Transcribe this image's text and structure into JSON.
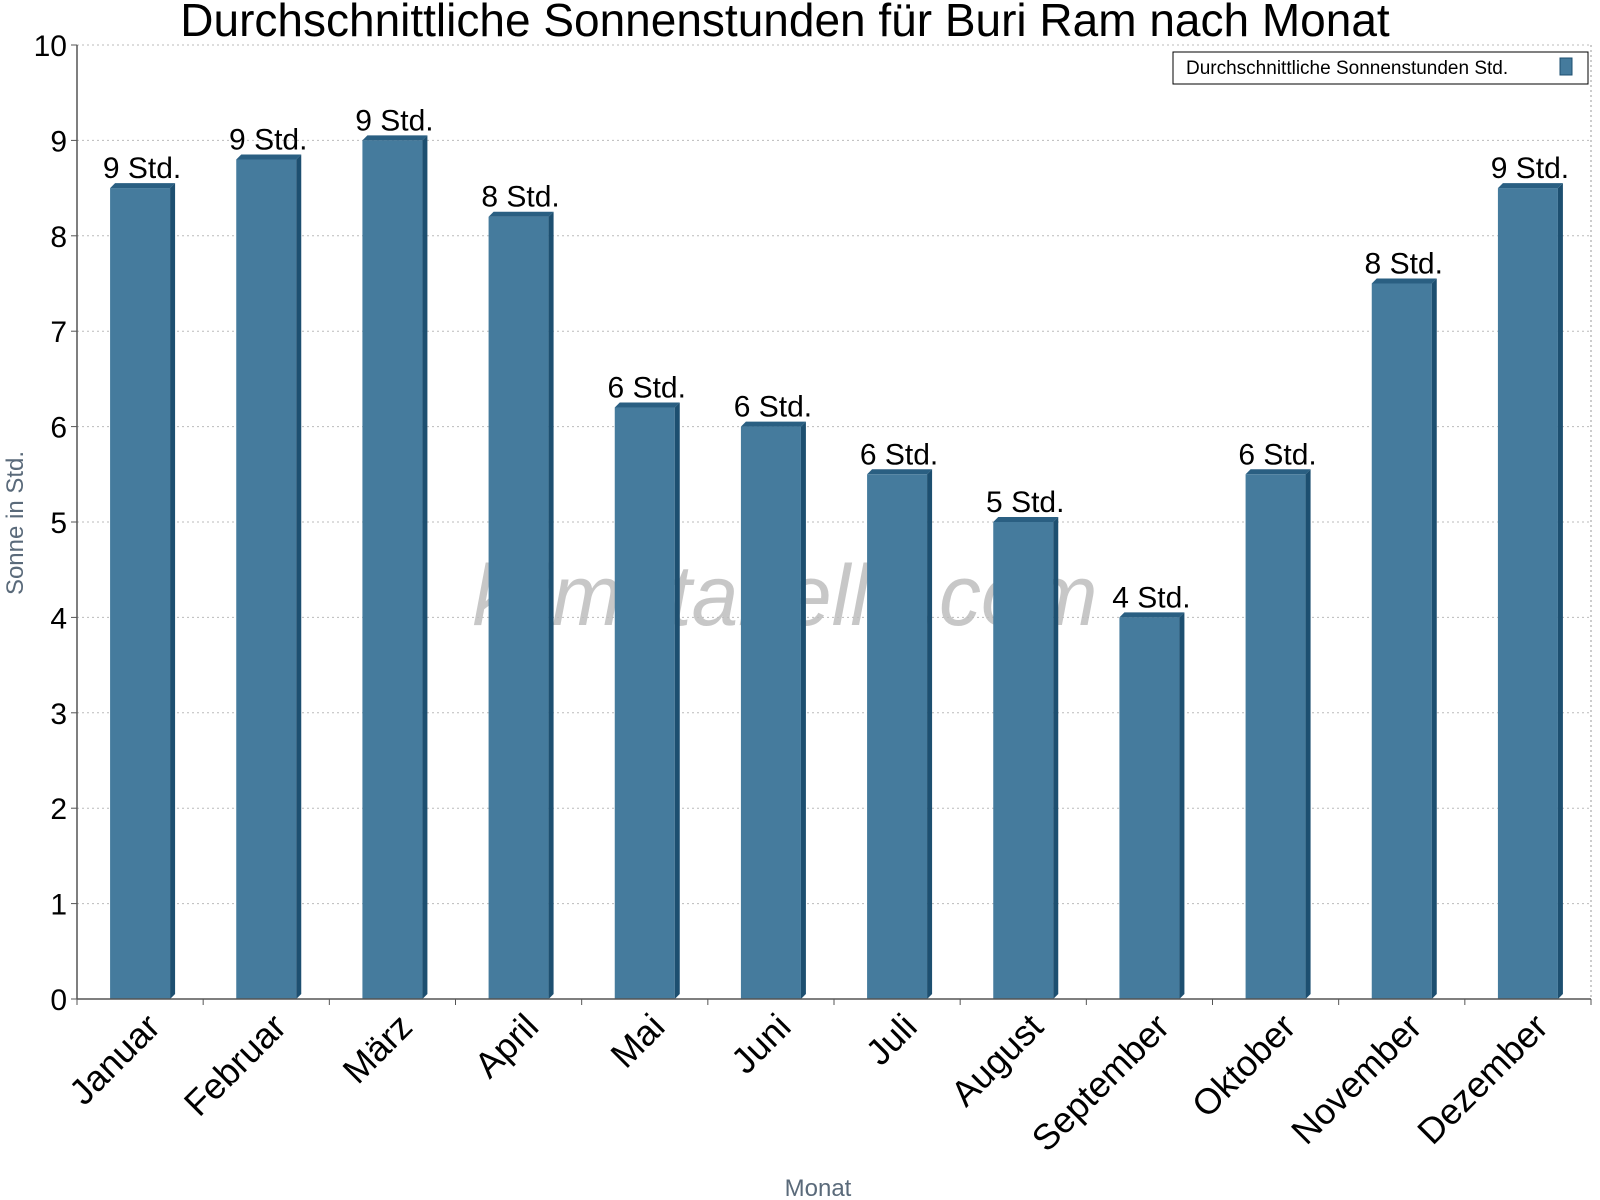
{
  "chart_data": {
    "type": "bar",
    "title": "Durchschnittliche Sonnenstunden für Buri Ram nach Monat",
    "xlabel": "Monat",
    "ylabel": "Sonne in Std.",
    "ylim": [
      0,
      10
    ],
    "yticks": [
      0,
      1,
      2,
      3,
      4,
      5,
      6,
      7,
      8,
      9,
      10
    ],
    "grid": "horizontal dotted",
    "legend_position": "top-right",
    "categories": [
      "Januar",
      "Februar",
      "März",
      "April",
      "Mai",
      "Juni",
      "Juli",
      "August",
      "September",
      "Oktober",
      "November",
      "Dezember"
    ],
    "series": [
      {
        "name": "Durchschnittliche Sonnenstunden Std.",
        "color": "#457b9d",
        "values": [
          8.5,
          8.8,
          9.0,
          8.2,
          6.2,
          6.0,
          5.5,
          5.0,
          4.0,
          5.5,
          7.5,
          8.5
        ],
        "data_labels": [
          "9 Std.",
          "9 Std.",
          "9 Std.",
          "8 Std.",
          "6 Std.",
          "6 Std.",
          "6 Std.",
          "5 Std.",
          "4 Std.",
          "6 Std.",
          "8 Std.",
          "9 Std."
        ]
      }
    ],
    "watermark": "klimatabelle.com"
  },
  "colors": {
    "bar_face": "#457b9d",
    "bar_side": "#1d4f70",
    "bar_top": "#2a5f82",
    "grid": "#bbbbbb",
    "axis": "#555555"
  }
}
